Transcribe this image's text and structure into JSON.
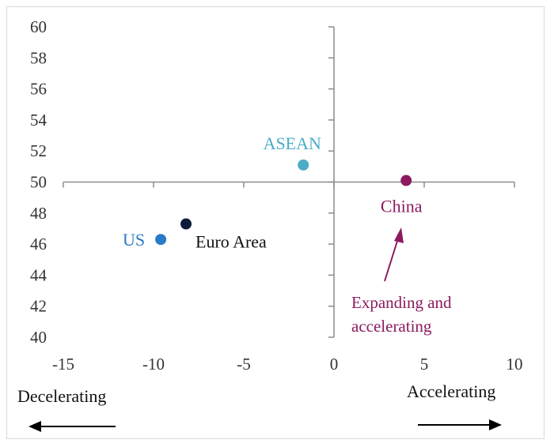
{
  "chart_data": {
    "type": "scatter",
    "xlim": [
      -15,
      10
    ],
    "ylim": [
      40,
      60
    ],
    "x_ticks": [
      -15,
      -10,
      -5,
      0,
      5,
      10
    ],
    "y_ticks": [
      40,
      42,
      44,
      46,
      48,
      50,
      52,
      54,
      56,
      58,
      60
    ],
    "x_tick_labels": [
      "-15",
      "-10",
      "-5",
      "0",
      "5",
      "10"
    ],
    "y_tick_labels": [
      "40",
      "42",
      "44",
      "46",
      "48",
      "50",
      "52",
      "54",
      "56",
      "58",
      "60"
    ],
    "crosshair": {
      "x": 0,
      "y": 50
    },
    "grid": false,
    "series": [
      {
        "name": "ASEAN",
        "x": -1.7,
        "y": 51.1,
        "color": "#4bacc6"
      },
      {
        "name": "China",
        "x": 4.0,
        "y": 50.1,
        "color": "#8b1a5e"
      },
      {
        "name": "US",
        "x": -9.6,
        "y": 46.3,
        "color": "#2a7ac7"
      },
      {
        "name": "Euro Area",
        "x": -8.2,
        "y": 47.3,
        "color": "#0d1a3a"
      }
    ],
    "annotation": {
      "lines": [
        "Expanding and",
        "accelerating"
      ],
      "color": "#8b1a5e",
      "points_to": "China"
    },
    "x_left_label": "Decelerating",
    "x_right_label": "Accelerating"
  }
}
